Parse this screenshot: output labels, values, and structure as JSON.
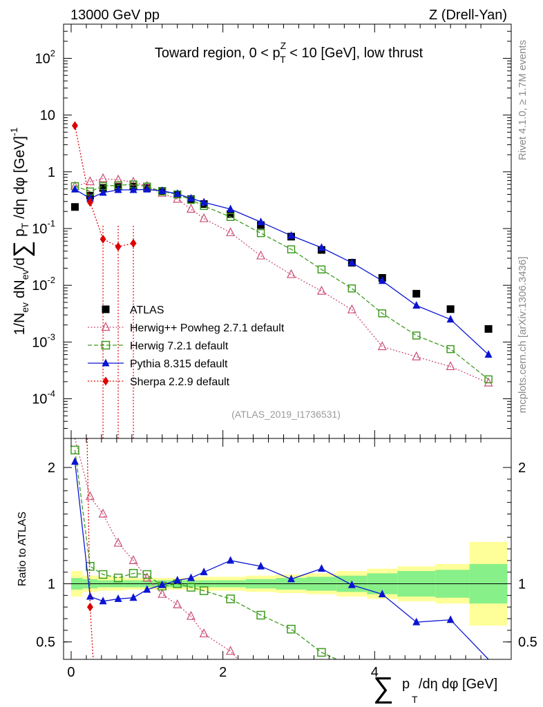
{
  "header": {
    "left": "13000 GeV pp",
    "right": "Z (Drell-Yan)"
  },
  "side_labels": {
    "rivet": "Rivet 4.1.0, ≥ 1.7M events",
    "mcplots": "mcplots.cern.ch [arXiv:1306.3436]"
  },
  "colors": {
    "atlas": "#000000",
    "herwigpp": "#cc4c72",
    "herwig7": "#3c9b1d",
    "pythia": "#0a14d2",
    "sherpa": "#dd0000",
    "band_outer": "#ffff99",
    "band_inner": "#88f088"
  },
  "chart_data": [
    {
      "type": "scatter",
      "name": "main",
      "title": "Toward region, 0 < p_T^Z < 10 [GeV], low thrust",
      "ylabel": "1/N_ev dN_ev/d∑p_T/dη dφ [GeV]^-1",
      "xlim": [
        -0.1,
        5.8
      ],
      "ylim": [
        2e-05,
        400
      ],
      "yscale": "log",
      "yticks": [
        {
          "v": 100,
          "m": "10",
          "e": "2"
        },
        {
          "v": 10,
          "m": "10",
          "e": ""
        },
        {
          "v": 1,
          "m": "1",
          "e": ""
        },
        {
          "v": 0.1,
          "m": "10",
          "e": "-1"
        },
        {
          "v": 0.01,
          "m": "10",
          "e": "-2"
        },
        {
          "v": 0.001,
          "m": "10",
          "e": "-3"
        },
        {
          "v": 0.0001,
          "m": "10",
          "e": "-4"
        }
      ],
      "watermark": "(ATLAS_2019_I1736531)",
      "legend_position": "lower-left",
      "series": [
        {
          "name": "ATLAS",
          "key": "atlas",
          "marker": "square",
          "line": "none",
          "x": [
            0.05,
            0.25,
            0.42,
            0.62,
            0.82,
            1.0,
            1.2,
            1.4,
            1.58,
            1.75,
            2.1,
            2.5,
            2.9,
            3.3,
            3.7,
            4.1,
            4.55,
            5.0,
            5.5
          ],
          "y": [
            0.24,
            0.38,
            0.52,
            0.55,
            0.55,
            0.52,
            0.46,
            0.4,
            0.33,
            0.27,
            0.18,
            0.115,
            0.072,
            0.042,
            0.025,
            0.0135,
            0.0071,
            0.0038,
            0.0017
          ]
        },
        {
          "name": "Herwig++ Powheg 2.7.1 default",
          "key": "herwigpp",
          "marker": "triangle-open",
          "line": "dotted",
          "x": [
            0.05,
            0.25,
            0.42,
            0.62,
            0.82,
            1.0,
            1.2,
            1.4,
            1.58,
            1.75,
            2.1,
            2.5,
            2.9,
            3.3,
            3.7,
            4.1,
            4.55,
            5.0,
            5.5
          ],
          "y": [
            0.55,
            0.67,
            0.76,
            0.72,
            0.66,
            0.56,
            0.42,
            0.33,
            0.22,
            0.15,
            0.085,
            0.033,
            0.0155,
            0.0079,
            0.0037,
            0.00083,
            0.00055,
            0.00037,
            0.00019
          ]
        },
        {
          "name": "Herwig 7.2.1 default",
          "key": "herwig7",
          "marker": "square-open",
          "line": "dashed",
          "x": [
            0.05,
            0.25,
            0.42,
            0.62,
            0.82,
            1.0,
            1.2,
            1.4,
            1.58,
            1.75,
            2.1,
            2.5,
            2.9,
            3.3,
            3.7,
            4.1,
            4.55,
            5.0,
            5.5
          ],
          "y": [
            0.56,
            0.45,
            0.56,
            0.58,
            0.6,
            0.55,
            0.45,
            0.4,
            0.32,
            0.25,
            0.16,
            0.083,
            0.043,
            0.019,
            0.0088,
            0.0032,
            0.0013,
            0.00075,
            0.00022
          ]
        },
        {
          "name": "Pythia 8.315 default",
          "key": "pythia",
          "marker": "triangle",
          "line": "solid",
          "x": [
            0.05,
            0.25,
            0.42,
            0.62,
            0.82,
            1.0,
            1.2,
            1.4,
            1.58,
            1.75,
            2.1,
            2.5,
            2.9,
            3.3,
            3.7,
            4.1,
            4.55,
            5.0,
            5.5
          ],
          "y": [
            0.49,
            0.34,
            0.43,
            0.48,
            0.48,
            0.49,
            0.46,
            0.41,
            0.34,
            0.29,
            0.22,
            0.13,
            0.075,
            0.046,
            0.025,
            0.012,
            0.0044,
            0.0025,
            0.0006
          ]
        },
        {
          "name": "Sherpa 2.2.9 default",
          "key": "sherpa",
          "marker": "diamond",
          "line": "dotted",
          "x": [
            0.05,
            0.25,
            0.42,
            0.62,
            0.82
          ],
          "y": [
            6.5,
            0.29,
            0.065,
            0.048,
            0.055
          ]
        }
      ]
    },
    {
      "type": "scatter",
      "name": "ratio",
      "ylabel": "Ratio to ATLAS",
      "xlabel": "∑p_T/dη dφ [GeV]",
      "xlim": [
        -0.1,
        5.8
      ],
      "ylim": [
        0.35,
        2.25
      ],
      "xticks": [
        0,
        2,
        4
      ],
      "yticks": [
        0.5,
        1,
        2
      ],
      "reference_line": 1,
      "band_x_edges": [
        0.0,
        0.15,
        0.35,
        0.5,
        0.7,
        0.9,
        1.1,
        1.3,
        1.5,
        1.65,
        1.9,
        2.3,
        2.7,
        3.1,
        3.5,
        3.9,
        4.3,
        4.8,
        5.25,
        5.75
      ],
      "band_outer": [
        0.11,
        0.07,
        0.06,
        0.06,
        0.05,
        0.05,
        0.05,
        0.05,
        0.05,
        0.06,
        0.06,
        0.07,
        0.08,
        0.09,
        0.11,
        0.13,
        0.15,
        0.17,
        0.36
      ],
      "band_inner": [
        0.05,
        0.04,
        0.03,
        0.03,
        0.03,
        0.03,
        0.03,
        0.03,
        0.03,
        0.03,
        0.03,
        0.04,
        0.05,
        0.06,
        0.07,
        0.09,
        0.11,
        0.12,
        0.17
      ],
      "series": [
        {
          "name": "Herwig++ Powheg 2.7.1 default",
          "key": "herwigpp",
          "marker": "triangle-open",
          "line": "dotted",
          "x": [
            0.05,
            0.25,
            0.42,
            0.62,
            0.82,
            1.0,
            1.2,
            1.4,
            1.58,
            1.75,
            2.1,
            2.2
          ],
          "y": [
            2.25,
            1.75,
            1.6,
            1.35,
            1.2,
            1.05,
            0.91,
            0.82,
            0.72,
            0.57,
            0.42,
            0.35
          ]
        },
        {
          "name": "Herwig 7.2.1 default",
          "key": "herwig7",
          "marker": "square-open",
          "line": "dashed",
          "x": [
            0.05,
            0.25,
            0.42,
            0.62,
            0.82,
            1.0,
            1.2,
            1.4,
            1.58,
            1.75,
            2.1,
            2.5,
            2.9,
            3.3,
            3.5
          ],
          "y": [
            2.15,
            1.15,
            1.08,
            1.05,
            1.09,
            1.08,
            0.98,
            1.0,
            0.97,
            0.94,
            0.87,
            0.73,
            0.61,
            0.41,
            0.35
          ]
        },
        {
          "name": "Pythia 8.315 default",
          "key": "pythia",
          "marker": "triangle",
          "line": "solid",
          "x": [
            0.05,
            0.25,
            0.42,
            0.62,
            0.82,
            1.0,
            1.2,
            1.4,
            1.58,
            1.75,
            2.1,
            2.5,
            2.9,
            3.3,
            3.7,
            4.1,
            4.55,
            5.0,
            5.5
          ],
          "y": [
            2.05,
            0.89,
            0.85,
            0.87,
            0.88,
            0.95,
            0.99,
            1.03,
            1.05,
            1.1,
            1.2,
            1.15,
            1.04,
            1.13,
            0.99,
            0.91,
            0.67,
            0.69,
            0.35
          ]
        },
        {
          "name": "Sherpa 2.2.9 default",
          "key": "sherpa",
          "marker": "diamond",
          "line": "dotted",
          "x": [
            0.21,
            0.25,
            0.29
          ],
          "y": [
            2.25,
            0.8,
            0.35
          ]
        }
      ]
    }
  ]
}
